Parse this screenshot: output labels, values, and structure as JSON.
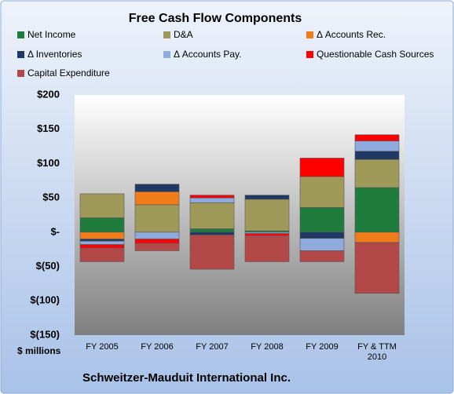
{
  "chart_data": {
    "type": "stacked-bar",
    "title": "Free Cash Flow Components",
    "categories": [
      "FY 2005",
      "FY 2006",
      "FY 2007",
      "FY 2008",
      "FY 2009",
      "FY & TTM 2010"
    ],
    "series": [
      {
        "name": "Net Income",
        "color": "#1e7b3c",
        "values": [
          21,
          0,
          5,
          2,
          36,
          65
        ]
      },
      {
        "name": "D&A",
        "color": "#a09a5a",
        "values": [
          35,
          40,
          38,
          46,
          45,
          41
        ]
      },
      {
        "name": "Δ Accounts Rec.",
        "color": "#f07d1a",
        "values": [
          -10,
          19,
          0,
          0,
          0,
          -15
        ]
      },
      {
        "name": "Δ Inventories",
        "color": "#1f3864",
        "values": [
          -3,
          11,
          -4,
          6,
          -9,
          12
        ]
      },
      {
        "name": "Δ Accounts Pay.",
        "color": "#8faadc",
        "values": [
          -5,
          -10,
          7,
          -2,
          -18,
          15
        ]
      },
      {
        "name": "Questionable Cash Sources",
        "color": "#ff0000",
        "values": [
          -5,
          -6,
          4,
          -3,
          27,
          9
        ]
      },
      {
        "name": "Capital Expenditure",
        "color": "#b24848",
        "values": [
          -20,
          -11,
          -50,
          -38,
          -16,
          -74
        ]
      }
    ],
    "ylim": [
      -150,
      200
    ],
    "yticks": [
      {
        "value": -150,
        "label": "$(150)"
      },
      {
        "value": -100,
        "label": "$(100)"
      },
      {
        "value": -50,
        "label": "$(50)"
      },
      {
        "value": 0,
        "label": "$-"
      },
      {
        "value": 50,
        "label": "$50"
      },
      {
        "value": 100,
        "label": "$100"
      },
      {
        "value": 150,
        "label": "$150"
      },
      {
        "value": 200,
        "label": "$200"
      }
    ],
    "y_axis_label": "$ millions",
    "footer": "Schweitzer-Mauduit International Inc.",
    "grid": false
  }
}
